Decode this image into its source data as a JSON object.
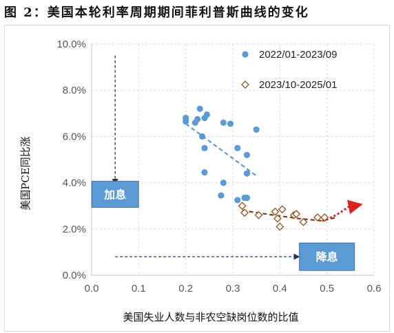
{
  "figure_title": "图 2：美国本轮利率周期期间菲利普斯曲线的变化",
  "chart_data": {
    "type": "scatter",
    "xlabel": "美国失业人数与非农空缺岗位数的比值",
    "ylabel": "美国PCE同比涨",
    "xlim": [
      0.0,
      0.6
    ],
    "ylim": [
      0.0,
      10.0
    ],
    "x_ticks": [
      "0.0",
      "0.1",
      "0.2",
      "0.3",
      "0.4",
      "0.5",
      "0.6"
    ],
    "x_tick_values": [
      0.0,
      0.1,
      0.2,
      0.3,
      0.4,
      0.5,
      0.6
    ],
    "y_ticks": [
      "0.0%",
      "2.0%",
      "4.0%",
      "6.0%",
      "8.0%",
      "10.0%"
    ],
    "y_tick_values": [
      0,
      2,
      4,
      6,
      8,
      10
    ],
    "grid": true,
    "legend_position": "top-right",
    "series": [
      {
        "name": "2022/01-2023/09",
        "marker": "circle",
        "color": "#5b9bd5",
        "points": [
          [
            0.2,
            6.8
          ],
          [
            0.2,
            6.65
          ],
          [
            0.22,
            6.6
          ],
          [
            0.225,
            6.75
          ],
          [
            0.23,
            7.2
          ],
          [
            0.235,
            6.0
          ],
          [
            0.24,
            6.8
          ],
          [
            0.245,
            6.95
          ],
          [
            0.24,
            5.5
          ],
          [
            0.24,
            4.45
          ],
          [
            0.275,
            3.45
          ],
          [
            0.28,
            4.0
          ],
          [
            0.28,
            6.6
          ],
          [
            0.295,
            6.55
          ],
          [
            0.31,
            3.25
          ],
          [
            0.31,
            5.5
          ],
          [
            0.325,
            3.35
          ],
          [
            0.33,
            3.35
          ],
          [
            0.33,
            5.2
          ],
          [
            0.33,
            4.4
          ],
          [
            0.35,
            6.3
          ]
        ]
      },
      {
        "name": "2023/10-2025/01",
        "marker": "diamond",
        "color": "#9c5a2a",
        "points": [
          [
            0.32,
            3.0
          ],
          [
            0.325,
            2.7
          ],
          [
            0.355,
            2.6
          ],
          [
            0.39,
            2.75
          ],
          [
            0.395,
            2.45
          ],
          [
            0.4,
            2.1
          ],
          [
            0.405,
            2.85
          ],
          [
            0.43,
            2.6
          ],
          [
            0.435,
            2.65
          ],
          [
            0.45,
            2.3
          ],
          [
            0.48,
            2.5
          ],
          [
            0.495,
            2.5
          ]
        ]
      }
    ],
    "trendlines": [
      {
        "series": "2022/01-2023/09",
        "color": "#5b9bd5",
        "points": [
          [
            0.2,
            6.55
          ],
          [
            0.35,
            4.3
          ]
        ]
      },
      {
        "series": "2023/10-2025/01",
        "color": "#7a3e12",
        "points": [
          [
            0.32,
            2.8
          ],
          [
            0.38,
            2.62
          ],
          [
            0.44,
            2.45
          ],
          [
            0.49,
            2.35
          ],
          [
            0.52,
            2.5
          ]
        ]
      }
    ],
    "trend_arrow": {
      "color": "#e0201a",
      "points": [
        [
          0.49,
          2.35
        ],
        [
          0.52,
          2.55
        ],
        [
          0.545,
          2.95
        ],
        [
          0.57,
          3.05
        ]
      ]
    },
    "annotations": {
      "hike": {
        "label": "加息",
        "color": "#5b9bd5",
        "anchor": [
          0.05,
          3.5
        ]
      },
      "cut": {
        "label": "降息",
        "color": "#5b9bd5",
        "anchor": [
          0.5,
          0.8
        ]
      },
      "hike_arrow": {
        "color": "#333333",
        "from": [
          0.05,
          9.5
        ],
        "to": [
          0.05,
          3.95
        ]
      },
      "cut_arrow": {
        "color": "#1f3864",
        "from": [
          0.05,
          0.8
        ],
        "to": [
          0.44,
          0.8
        ]
      }
    }
  }
}
